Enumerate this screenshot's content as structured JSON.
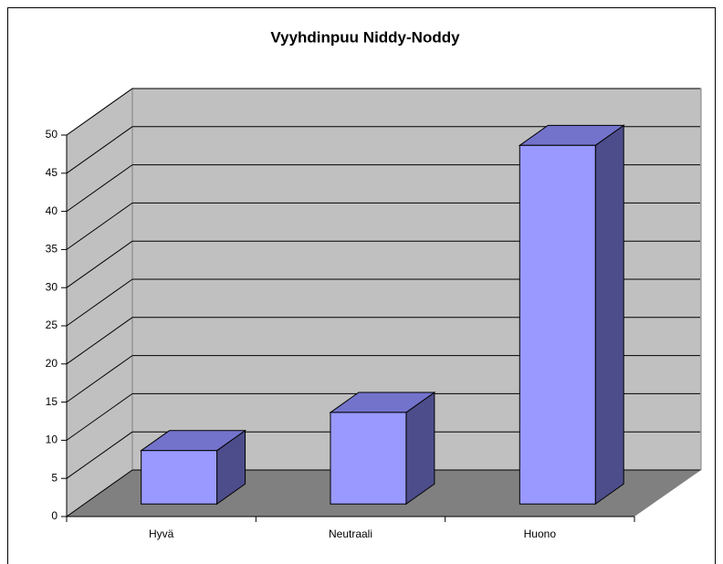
{
  "chart_data": {
    "type": "bar3d",
    "title": "Vyyhdinpuu Niddy-Noddy",
    "categories": [
      "Hyvä",
      "Neutraali",
      "Huono"
    ],
    "values": [
      7,
      12,
      47
    ],
    "color": "#9999ff",
    "ylim": [
      0,
      50
    ],
    "yticks": [
      0,
      5,
      10,
      15,
      20,
      25,
      30,
      35,
      40,
      45,
      50
    ],
    "grid": true
  }
}
